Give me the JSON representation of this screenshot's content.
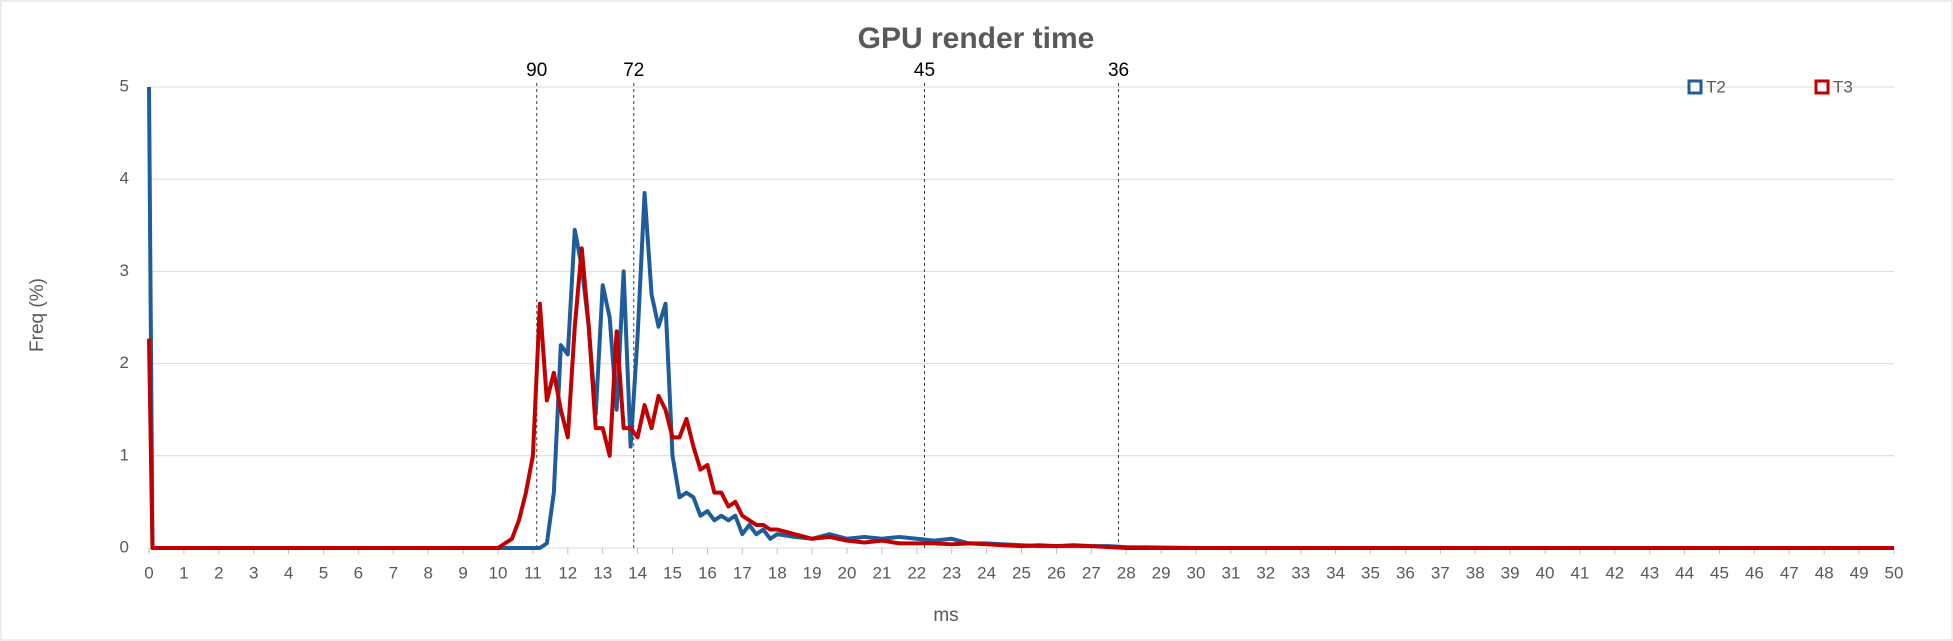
{
  "chart_data": {
    "type": "line",
    "title": "GPU render time",
    "x_label": "ms",
    "y_label": "Freq (%)",
    "x": [
      0,
      0.1,
      10,
      10.2,
      10.4,
      10.6,
      10.8,
      11,
      11.2,
      11.4,
      11.6,
      11.8,
      12,
      12.2,
      12.4,
      12.6,
      12.8,
      13,
      13.2,
      13.4,
      13.6,
      13.8,
      14,
      14.2,
      14.4,
      14.6,
      14.8,
      15,
      15.2,
      15.4,
      15.6,
      15.8,
      16,
      16.2,
      16.4,
      16.6,
      16.8,
      17,
      17.2,
      17.4,
      17.6,
      17.8,
      18,
      18.5,
      19,
      19.5,
      20,
      20.5,
      21,
      21.5,
      22,
      22.5,
      23,
      23.5,
      24,
      24.5,
      25,
      25.5,
      26,
      26.5,
      27,
      27.5,
      28,
      30,
      40,
      50
    ],
    "series": [
      {
        "name": "T2",
        "color": "#1f5c99",
        "values": [
          5,
          0,
          0,
          0,
          0,
          0,
          0,
          0,
          0,
          0.05,
          0.6,
          2.2,
          2.1,
          3.45,
          3.05,
          2.4,
          1.45,
          2.85,
          2.5,
          1.5,
          3.0,
          1.1,
          2.3,
          3.85,
          2.75,
          2.4,
          2.65,
          1.0,
          0.55,
          0.6,
          0.55,
          0.35,
          0.4,
          0.3,
          0.35,
          0.3,
          0.35,
          0.15,
          0.25,
          0.15,
          0.2,
          0.1,
          0.15,
          0.12,
          0.1,
          0.15,
          0.1,
          0.12,
          0.1,
          0.12,
          0.1,
          0.08,
          0.1,
          0.05,
          0.05,
          0.04,
          0.03,
          0.02,
          0.02,
          0.02,
          0.02,
          0.02,
          0.01,
          0,
          0,
          0
        ]
      },
      {
        "name": "T3",
        "color": "#c00000",
        "values": [
          2.27,
          0,
          0,
          0.05,
          0.1,
          0.3,
          0.6,
          1.0,
          2.65,
          1.6,
          1.9,
          1.5,
          1.2,
          2.4,
          3.25,
          2.4,
          1.3,
          1.3,
          1.0,
          2.35,
          1.3,
          1.3,
          1.2,
          1.55,
          1.3,
          1.65,
          1.5,
          1.2,
          1.2,
          1.4,
          1.1,
          0.85,
          0.9,
          0.6,
          0.6,
          0.45,
          0.5,
          0.35,
          0.3,
          0.25,
          0.25,
          0.2,
          0.2,
          0.15,
          0.1,
          0.12,
          0.08,
          0.06,
          0.08,
          0.05,
          0.05,
          0.05,
          0.04,
          0.05,
          0.04,
          0.03,
          0.02,
          0.03,
          0.02,
          0.03,
          0.02,
          0.01,
          0,
          0,
          0,
          0
        ]
      }
    ],
    "xlim": [
      0,
      50
    ],
    "xticks": [
      0,
      1,
      2,
      3,
      4,
      5,
      6,
      7,
      8,
      9,
      10,
      11,
      12,
      13,
      14,
      15,
      16,
      17,
      18,
      19,
      20,
      21,
      22,
      23,
      24,
      25,
      26,
      27,
      28,
      29,
      30,
      31,
      32,
      33,
      34,
      35,
      36,
      37,
      38,
      39,
      40,
      41,
      42,
      43,
      44,
      45,
      46,
      47,
      48,
      49,
      50
    ],
    "ylim": [
      0,
      5
    ],
    "yticks": [
      0,
      1,
      2,
      3,
      4,
      5
    ],
    "grid": true,
    "legend": "top-right",
    "markers": [
      {
        "x": 11.11,
        "label": "90"
      },
      {
        "x": 13.89,
        "label": "72"
      },
      {
        "x": 22.22,
        "label": "45"
      },
      {
        "x": 27.78,
        "label": "36"
      }
    ]
  }
}
